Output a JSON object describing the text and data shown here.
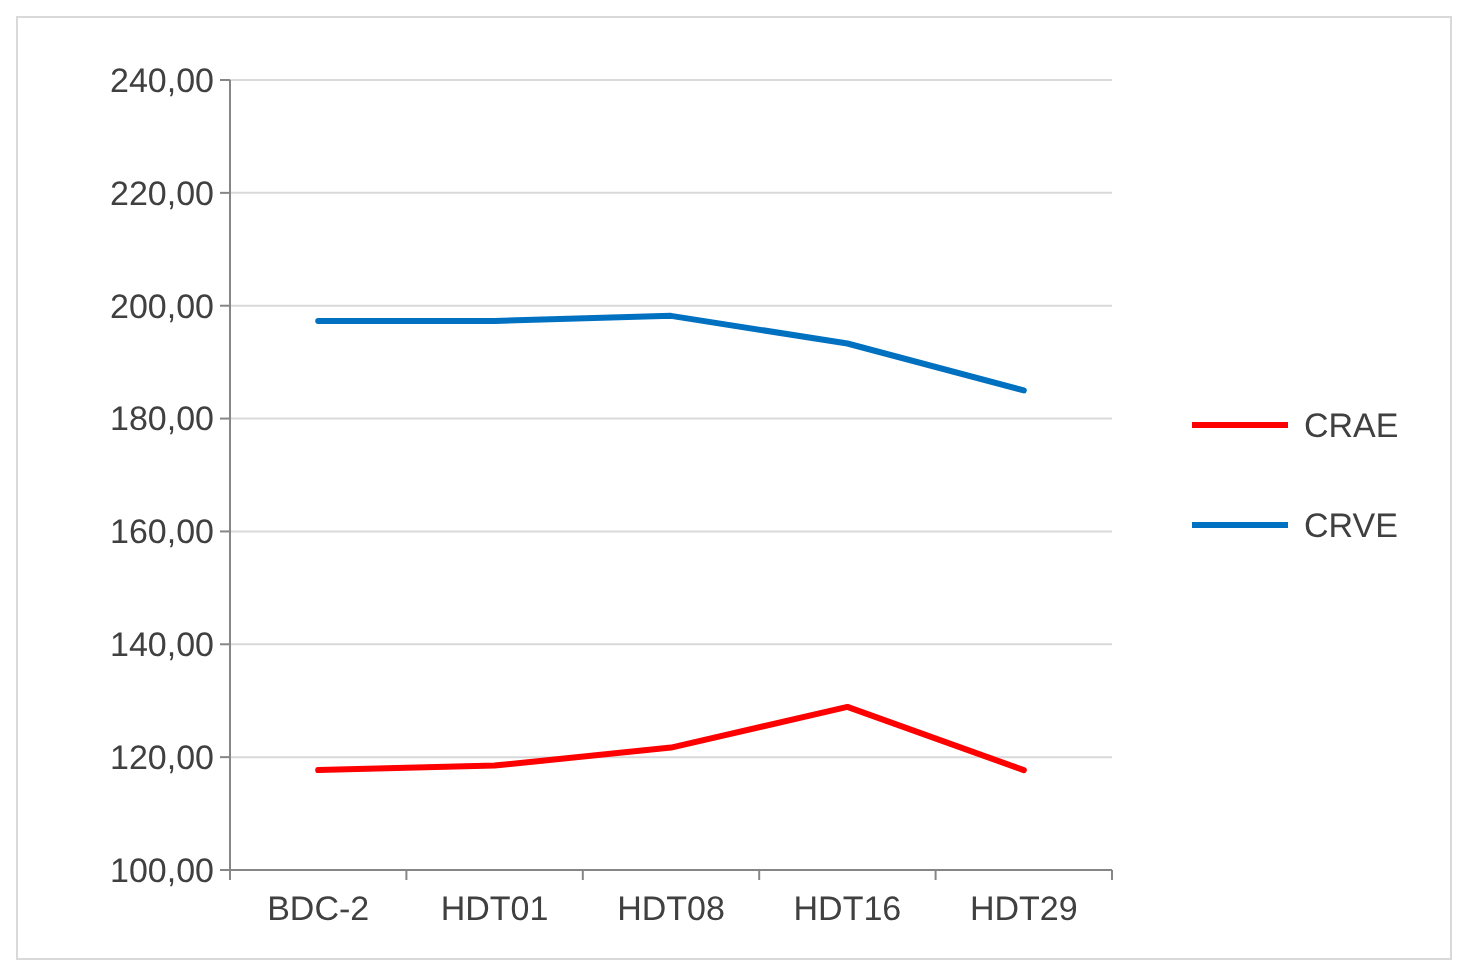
{
  "chart_data": {
    "type": "line",
    "categories": [
      "BDC-2",
      "HDT01",
      "HDT08",
      "HDT16",
      "HDT29"
    ],
    "series": [
      {
        "name": "CRAE",
        "color": "#ff0000",
        "values": [
          117.7,
          118.5,
          121.7,
          128.9,
          117.7
        ]
      },
      {
        "name": "CRVE",
        "color": "#0070c0",
        "values": [
          197.3,
          197.3,
          198.2,
          193.3,
          185.0
        ]
      }
    ],
    "ylim": [
      100,
      240
    ],
    "yticks": [
      {
        "value": 100,
        "label": "100,00"
      },
      {
        "value": 120,
        "label": "120,00"
      },
      {
        "value": 140,
        "label": "140,00"
      },
      {
        "value": 160,
        "label": "160,00"
      },
      {
        "value": 180,
        "label": "180,00"
      },
      {
        "value": 200,
        "label": "200,00"
      },
      {
        "value": 220,
        "label": "220,00"
      },
      {
        "value": 240,
        "label": "240,00"
      }
    ],
    "grid": "y",
    "legend": "right",
    "marker": "none",
    "line_style": "solid"
  }
}
